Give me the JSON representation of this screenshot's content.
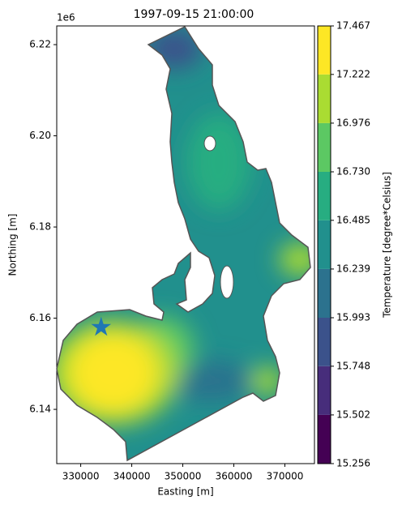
{
  "chart_data": {
    "type": "contour",
    "title": "1997-09-15 21:00:00",
    "xlabel": "Easting [m]",
    "ylabel": "Northing [m]",
    "y_offset_label": "1e6",
    "xlim": [
      325300,
      375800
    ],
    "xticks": [
      330000,
      340000,
      350000,
      360000,
      370000
    ],
    "ylim": [
      6.1281,
      6.2241
    ],
    "yticks": [
      6.14,
      {
        "value": 6.16,
        "label": "6.16"
      },
      6.18,
      {
        "value": 6.2,
        "label": "6.20"
      },
      6.22
    ],
    "marker": {
      "x": 334000,
      "y": 6.158,
      "color": "#1f77b4"
    },
    "colorbar": {
      "label": "Temperature [degree*Celsius]",
      "levels": [
        15.256,
        15.502,
        15.748,
        15.993,
        16.239,
        16.485,
        {
          "value": 16.73,
          "label": "16.730"
        },
        16.976,
        17.222,
        17.467
      ],
      "colors": [
        "#440154",
        "#472d7b",
        "#3b528b",
        "#2c728e",
        "#21908d",
        "#27ad81",
        "#5cc863",
        "#aadc32",
        "#fde725"
      ]
    }
  }
}
